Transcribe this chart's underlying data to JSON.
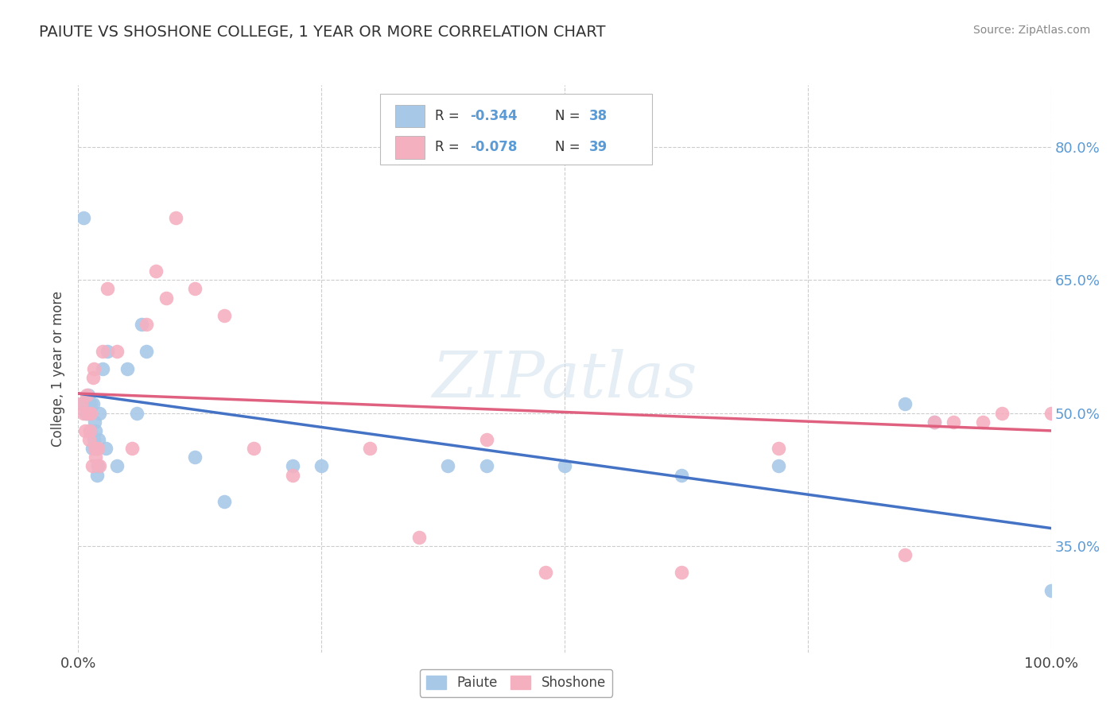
{
  "title": "PAIUTE VS SHOSHONE COLLEGE, 1 YEAR OR MORE CORRELATION CHART",
  "source_text": "Source: ZipAtlas.com",
  "ylabel": "College, 1 year or more",
  "ytick_labels": [
    "35.0%",
    "50.0%",
    "65.0%",
    "80.0%"
  ],
  "ytick_values": [
    0.35,
    0.5,
    0.65,
    0.8
  ],
  "xlim": [
    0.0,
    1.0
  ],
  "ylim": [
    0.23,
    0.87
  ],
  "legend_r_paiute": "R = -0.344",
  "legend_n_paiute": "N = 38",
  "legend_r_shoshone": "R = -0.078",
  "legend_n_shoshone": "N = 39",
  "paiute_color": "#a8c8e8",
  "shoshone_color": "#f5b0c0",
  "paiute_line_color": "#4472c4",
  "shoshone_line_color": "#e06080",
  "watermark": "ZIPatlas",
  "background_color": "#ffffff",
  "grid_color": "#cccccc",
  "paiute_x": [
    0.003,
    0.005,
    0.006,
    0.008,
    0.009,
    0.01,
    0.011,
    0.012,
    0.013,
    0.014,
    0.015,
    0.016,
    0.017,
    0.018,
    0.019,
    0.02,
    0.021,
    0.022,
    0.025,
    0.028,
    0.03,
    0.04,
    0.05,
    0.06,
    0.065,
    0.07,
    0.12,
    0.15,
    0.22,
    0.25,
    0.38,
    0.42,
    0.5,
    0.62,
    0.72,
    0.85,
    0.88,
    1.0
  ],
  "paiute_y": [
    0.51,
    0.72,
    0.51,
    0.5,
    0.5,
    0.52,
    0.5,
    0.48,
    0.51,
    0.46,
    0.51,
    0.47,
    0.49,
    0.48,
    0.43,
    0.44,
    0.47,
    0.5,
    0.55,
    0.46,
    0.57,
    0.44,
    0.55,
    0.5,
    0.6,
    0.57,
    0.45,
    0.4,
    0.44,
    0.44,
    0.44,
    0.44,
    0.44,
    0.43,
    0.44,
    0.51,
    0.49,
    0.3
  ],
  "shoshone_x": [
    0.003,
    0.005,
    0.007,
    0.009,
    0.01,
    0.011,
    0.012,
    0.013,
    0.014,
    0.015,
    0.016,
    0.017,
    0.018,
    0.02,
    0.022,
    0.025,
    0.03,
    0.04,
    0.055,
    0.07,
    0.08,
    0.09,
    0.1,
    0.12,
    0.15,
    0.18,
    0.22,
    0.3,
    0.35,
    0.42,
    0.48,
    0.62,
    0.72,
    0.85,
    0.88,
    0.9,
    0.93,
    0.95,
    1.0
  ],
  "shoshone_y": [
    0.51,
    0.5,
    0.48,
    0.52,
    0.5,
    0.47,
    0.48,
    0.5,
    0.44,
    0.54,
    0.55,
    0.46,
    0.45,
    0.46,
    0.44,
    0.57,
    0.64,
    0.57,
    0.46,
    0.6,
    0.66,
    0.63,
    0.72,
    0.64,
    0.61,
    0.46,
    0.43,
    0.46,
    0.36,
    0.47,
    0.32,
    0.32,
    0.46,
    0.34,
    0.49,
    0.49,
    0.49,
    0.5,
    0.5
  ],
  "paiute_line_x": [
    0.0,
    1.0
  ],
  "paiute_line_y": [
    0.522,
    0.37
  ],
  "shoshone_line_x": [
    0.0,
    1.0
  ],
  "shoshone_line_y": [
    0.522,
    0.48
  ]
}
